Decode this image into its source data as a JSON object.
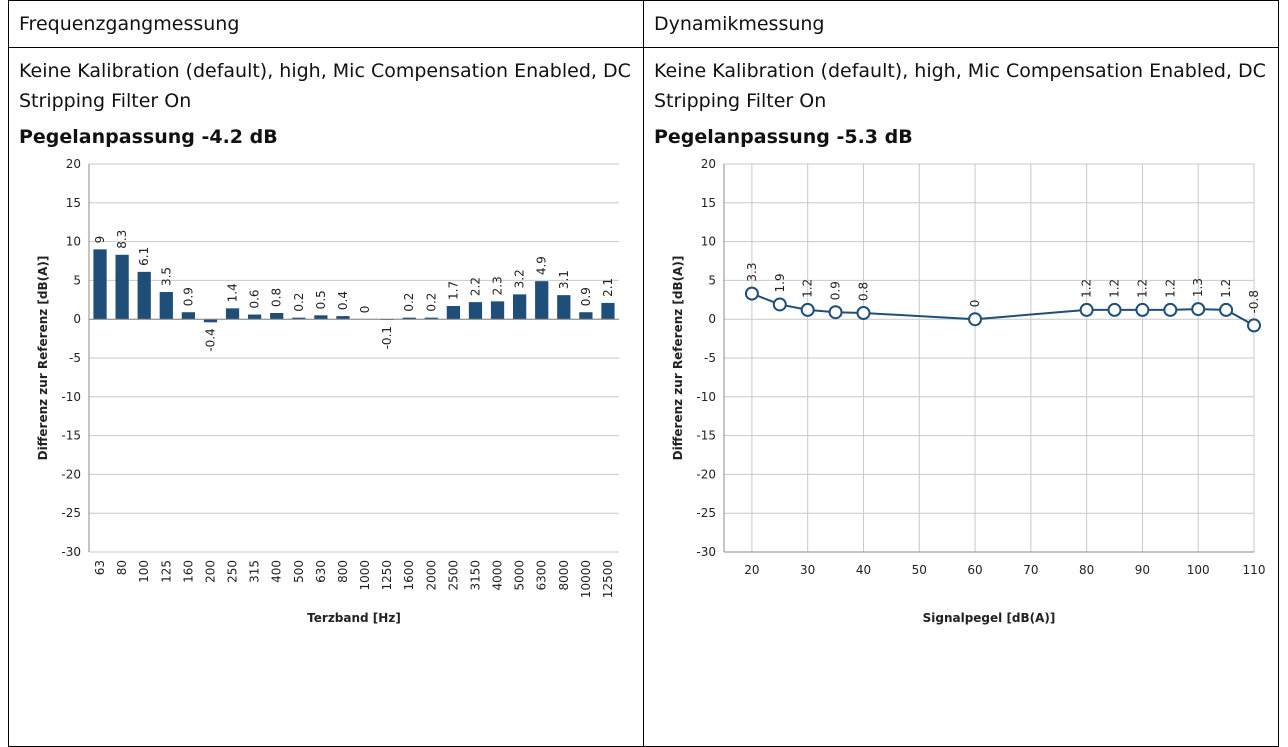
{
  "table": {
    "headers": [
      "Frequenzgangmessung",
      "Dynamikmessung"
    ],
    "cells": [
      {
        "description": "Keine Kalibration (default), high, Mic Compensation Enabled, DC Stripping Filter On",
        "level": "Pegelanpassung -4.2 dB"
      },
      {
        "description": "Keine Kalibration (default), high, Mic Compensation Enabled, DC Stripping Filter On",
        "level": "Pegelanpassung -5.3 dB"
      }
    ]
  },
  "chart_data": [
    {
      "type": "bar",
      "x_label": "Terzband [Hz]",
      "y_label": "Differenz zur Referenz [dB(A)]",
      "categories": [
        "63",
        "80",
        "100",
        "125",
        "160",
        "200",
        "250",
        "315",
        "400",
        "500",
        "630",
        "800",
        "1000",
        "1250",
        "1600",
        "2000",
        "2500",
        "3150",
        "4000",
        "5000",
        "6300",
        "8000",
        "10000",
        "12500"
      ],
      "values": [
        9,
        8.3,
        6.1,
        3.5,
        0.9,
        -0.4,
        1.4,
        0.6,
        0.8,
        0.2,
        0.5,
        0.4,
        0,
        -0.1,
        0.2,
        0.2,
        1.7,
        2.2,
        2.3,
        3.2,
        4.9,
        3.1,
        0.9,
        2.1
      ],
      "color": "#1f4e79",
      "ylim": [
        -30,
        20
      ],
      "yticks": [
        -30,
        -25,
        -20,
        -15,
        -10,
        -5,
        0,
        5,
        10,
        15,
        20
      ],
      "grid": true
    },
    {
      "type": "line",
      "x_label": "Signalpegel [dB(A)]",
      "y_label": "Differenz zur Referenz [dB(A)]",
      "x": [
        20,
        25,
        30,
        35,
        40,
        60,
        80,
        85,
        90,
        95,
        100,
        105,
        110
      ],
      "values": [
        3.3,
        1.9,
        1.2,
        0.9,
        0.8,
        0,
        1.2,
        1.2,
        1.2,
        1.2,
        1.3,
        1.2,
        -0.8
      ],
      "color": "#1f4e79",
      "xlim": [
        15,
        110
      ],
      "xticks": [
        20,
        30,
        40,
        50,
        60,
        70,
        80,
        90,
        100,
        110
      ],
      "ylim": [
        -30,
        20
      ],
      "yticks": [
        -30,
        -25,
        -20,
        -15,
        -10,
        -5,
        0,
        5,
        10,
        15,
        20
      ],
      "grid": true
    }
  ]
}
